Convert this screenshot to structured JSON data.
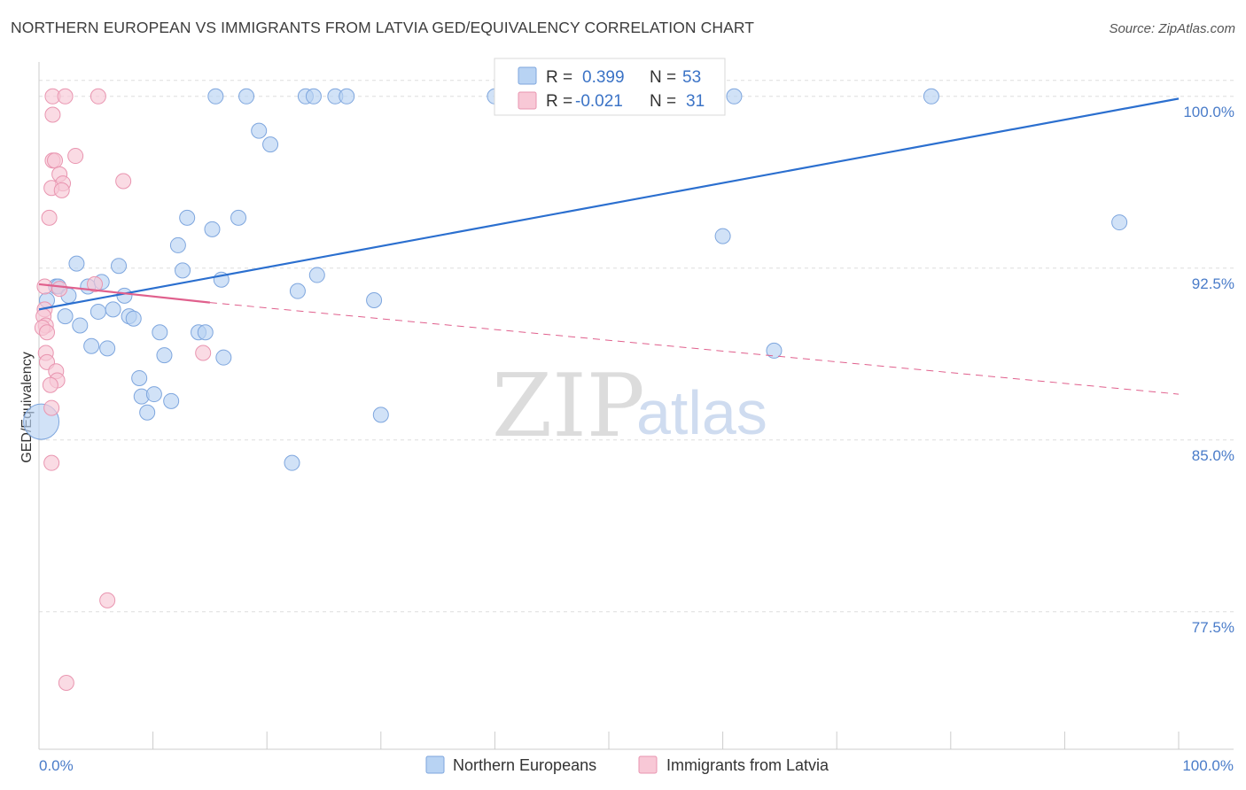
{
  "title": "NORTHERN EUROPEAN VS IMMIGRANTS FROM LATVIA GED/EQUIVALENCY CORRELATION CHART",
  "source": "Source: ZipAtlas.com",
  "watermark": {
    "zip": "ZIP",
    "atlas": "atlas"
  },
  "colors": {
    "blue_fill": "#b8d3f3",
    "blue_stroke": "#7ea6de",
    "blue_line": "#2b6fcf",
    "pink_fill": "#f8c8d6",
    "pink_stroke": "#e995b0",
    "pink_line": "#e0608d",
    "grid": "#dedede",
    "axis": "#cccccc",
    "tick_text": "#4a7cc9"
  },
  "legend": {
    "r_label": "R =",
    "n_label": "N =",
    "rows": [
      {
        "series": "Northern Europeans",
        "r": "0.399",
        "n": "53"
      },
      {
        "series": "Immigrants from Latvia",
        "r": "-0.021",
        "n": "31"
      }
    ]
  },
  "chart_data": {
    "type": "scatter",
    "title": "NORTHERN EUROPEAN VS IMMIGRANTS FROM LATVIA GED/EQUIVALENCY CORRELATION CHART",
    "xlabel": "",
    "ylabel": "GED/Equivalency",
    "xlim": [
      0,
      100
    ],
    "ylim": [
      71.5,
      101.5
    ],
    "x_tick_labels": [
      "0.0%",
      "100.0%"
    ],
    "y_ticks": [
      77.5,
      85.0,
      92.5,
      100.0
    ],
    "y_tick_labels": [
      "77.5%",
      "85.0%",
      "92.5%",
      "100.0%"
    ],
    "grid": true,
    "legend_position": "top-center",
    "series": [
      {
        "name": "Northern Europeans",
        "r": 0.399,
        "n": 53,
        "trend": {
          "x": [
            0,
            100
          ],
          "y": [
            90.7,
            99.9
          ],
          "style": "solid"
        },
        "points": [
          [
            0.7,
            91.1
          ],
          [
            1.5,
            91.7
          ],
          [
            1.7,
            91.7
          ],
          [
            2.3,
            90.4
          ],
          [
            2.6,
            91.3
          ],
          [
            3.3,
            92.7
          ],
          [
            3.6,
            90.0
          ],
          [
            4.3,
            91.7
          ],
          [
            4.6,
            89.1
          ],
          [
            5.2,
            90.6
          ],
          [
            5.5,
            91.9
          ],
          [
            6.0,
            89.0
          ],
          [
            6.5,
            90.7
          ],
          [
            7.0,
            92.6
          ],
          [
            7.5,
            91.3
          ],
          [
            7.9,
            90.4
          ],
          [
            8.3,
            90.3
          ],
          [
            8.8,
            87.7
          ],
          [
            9.0,
            86.9
          ],
          [
            9.5,
            86.2
          ],
          [
            10.1,
            87.0
          ],
          [
            10.6,
            89.7
          ],
          [
            11.0,
            88.7
          ],
          [
            11.6,
            86.7
          ],
          [
            12.2,
            93.5
          ],
          [
            12.6,
            92.4
          ],
          [
            13.0,
            94.7
          ],
          [
            14.0,
            89.7
          ],
          [
            14.6,
            89.7
          ],
          [
            15.2,
            94.2
          ],
          [
            16.0,
            92.0
          ],
          [
            16.2,
            88.6
          ],
          [
            17.5,
            94.7
          ],
          [
            15.5,
            100.0
          ],
          [
            18.2,
            100.0
          ],
          [
            19.3,
            98.5
          ],
          [
            20.3,
            97.9
          ],
          [
            22.2,
            84.0
          ],
          [
            22.7,
            91.5
          ],
          [
            23.4,
            100.0
          ],
          [
            24.1,
            100.0
          ],
          [
            24.4,
            92.2
          ],
          [
            26.0,
            100.0
          ],
          [
            27.0,
            100.0
          ],
          [
            29.4,
            91.1
          ],
          [
            30.0,
            86.1
          ],
          [
            40.0,
            100.0
          ],
          [
            60.0,
            93.9
          ],
          [
            61.0,
            100.0
          ],
          [
            64.5,
            88.9
          ],
          [
            78.3,
            100.0
          ],
          [
            94.8,
            94.5
          ],
          [
            0.2,
            85.8
          ]
        ]
      },
      {
        "name": "Immigrants from Latvia",
        "r": -0.021,
        "n": 31,
        "trend": {
          "x": [
            0,
            15
          ],
          "y": [
            91.8,
            91.0
          ],
          "style": "solid",
          "dashed_extension": {
            "x": [
              15,
              100
            ],
            "y": [
              91.0,
              87.0
            ]
          }
        },
        "points": [
          [
            1.2,
            100.0
          ],
          [
            2.3,
            100.0
          ],
          [
            5.2,
            100.0
          ],
          [
            1.2,
            99.2
          ],
          [
            1.2,
            97.2
          ],
          [
            1.4,
            97.2
          ],
          [
            3.2,
            97.4
          ],
          [
            1.8,
            96.6
          ],
          [
            2.1,
            96.2
          ],
          [
            1.1,
            96.0
          ],
          [
            2.0,
            95.9
          ],
          [
            7.4,
            96.3
          ],
          [
            0.9,
            94.7
          ],
          [
            0.5,
            91.7
          ],
          [
            1.8,
            91.6
          ],
          [
            4.9,
            91.8
          ],
          [
            0.5,
            90.7
          ],
          [
            0.4,
            90.4
          ],
          [
            0.6,
            90.0
          ],
          [
            0.3,
            89.9
          ],
          [
            0.7,
            89.7
          ],
          [
            0.6,
            88.8
          ],
          [
            0.7,
            88.4
          ],
          [
            1.5,
            88.0
          ],
          [
            1.6,
            87.6
          ],
          [
            1.0,
            87.4
          ],
          [
            1.1,
            86.4
          ],
          [
            1.1,
            84.0
          ],
          [
            14.4,
            88.8
          ],
          [
            6.0,
            78.0
          ],
          [
            2.4,
            74.4
          ]
        ]
      }
    ]
  }
}
